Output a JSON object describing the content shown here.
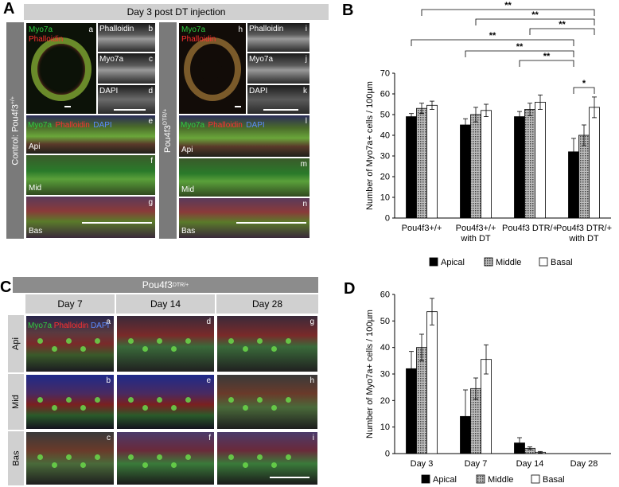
{
  "panel_letters": {
    "A": "A",
    "B": "B",
    "C": "C",
    "D": "D"
  },
  "panelA": {
    "header": "Day 3 post DT injection",
    "control_label": "Control: Pou4f3",
    "control_sup": "+/+",
    "dtr_label": "Pou4f3",
    "dtr_sup": "DTR/+",
    "label_myo7a": "Myo7a",
    "label_phalloidin": "Phalloidin",
    "label_dapi": "DAPI",
    "region_api": "Api",
    "region_mid": "Mid",
    "region_bas": "Bas",
    "sub": {
      "a": "a",
      "b": "b",
      "c": "c",
      "d": "d",
      "e": "e",
      "f": "f",
      "g": "g",
      "h": "h",
      "i": "i",
      "j": "j",
      "k": "k",
      "l": "l",
      "m": "m",
      "n": "n"
    }
  },
  "panelC": {
    "header": "Pou4f3",
    "header_sup": "DTR/+",
    "days": [
      "Day 7",
      "Day 14",
      "Day 28"
    ],
    "regions": [
      "Api",
      "Mid",
      "Bas"
    ],
    "label_myo7a": "Myo7a",
    "label_phalloidin": "Phalloidin",
    "label_dapi": "DAPI",
    "sub": [
      "a",
      "b",
      "c",
      "d",
      "e",
      "f",
      "g",
      "h",
      "i"
    ]
  },
  "chart_data": [
    {
      "type": "bar",
      "ylabel": "Number of Myo7a+ cells / 100µm",
      "xlabel": "",
      "ylim": [
        0,
        70
      ],
      "yticks": [
        0,
        10,
        20,
        30,
        40,
        50,
        60,
        70
      ],
      "categories": [
        "Pou4f3+/+",
        "Pou4f3+/+ with DT",
        "Pou4f3 DTR/+",
        "Pou4f3 DTR/+ with DT"
      ],
      "category_lines": [
        [
          "Pou4f3+/+"
        ],
        [
          "Pou4f3+/+",
          "with DT"
        ],
        [
          "Pou4f3 DTR/+"
        ],
        [
          "Pou4f3 DTR/+",
          "with DT"
        ]
      ],
      "series": [
        {
          "name": "Apical",
          "values": [
            49,
            45,
            49,
            32
          ],
          "errors": [
            1.5,
            3,
            2.5,
            6.5
          ],
          "fill": "#000000"
        },
        {
          "name": "Middle",
          "values": [
            53,
            50,
            52.5,
            40
          ],
          "errors": [
            2.5,
            3.5,
            3,
            5
          ],
          "fill": "pattern"
        },
        {
          "name": "Basal",
          "values": [
            54.5,
            52,
            56,
            53.5
          ],
          "errors": [
            2,
            3,
            3.5,
            5
          ],
          "fill": "#ffffff"
        }
      ],
      "significance": [
        {
          "label": "**"
        },
        {
          "label": "**"
        },
        {
          "label": "**"
        },
        {
          "label": "**"
        },
        {
          "label": "**"
        },
        {
          "label": "**"
        },
        {
          "label": "*"
        }
      ],
      "legend": [
        "Apical",
        "Middle",
        "Basal"
      ],
      "legend_position": "bottom"
    },
    {
      "type": "bar",
      "ylabel": "Number of Myo7a+ cells / 100µm",
      "xlabel": "",
      "ylim": [
        0,
        60
      ],
      "yticks": [
        0,
        10,
        20,
        30,
        40,
        50,
        60
      ],
      "categories": [
        "Day 3",
        "Day 7",
        "Day 14",
        "Day 28"
      ],
      "series": [
        {
          "name": "Apical",
          "values": [
            32,
            14,
            4,
            0
          ],
          "errors": [
            6.5,
            10,
            2,
            0
          ],
          "fill": "#000000"
        },
        {
          "name": "Middle",
          "values": [
            40,
            24.5,
            2,
            0
          ],
          "errors": [
            5,
            4,
            0.5,
            0
          ],
          "fill": "pattern"
        },
        {
          "name": "Basal",
          "values": [
            53.5,
            35.5,
            0.5,
            0
          ],
          "errors": [
            5,
            5.5,
            0.3,
            0
          ],
          "fill": "#ffffff"
        }
      ],
      "legend": [
        "Apical",
        "Middle",
        "Basal"
      ],
      "legend_position": "bottom"
    }
  ]
}
